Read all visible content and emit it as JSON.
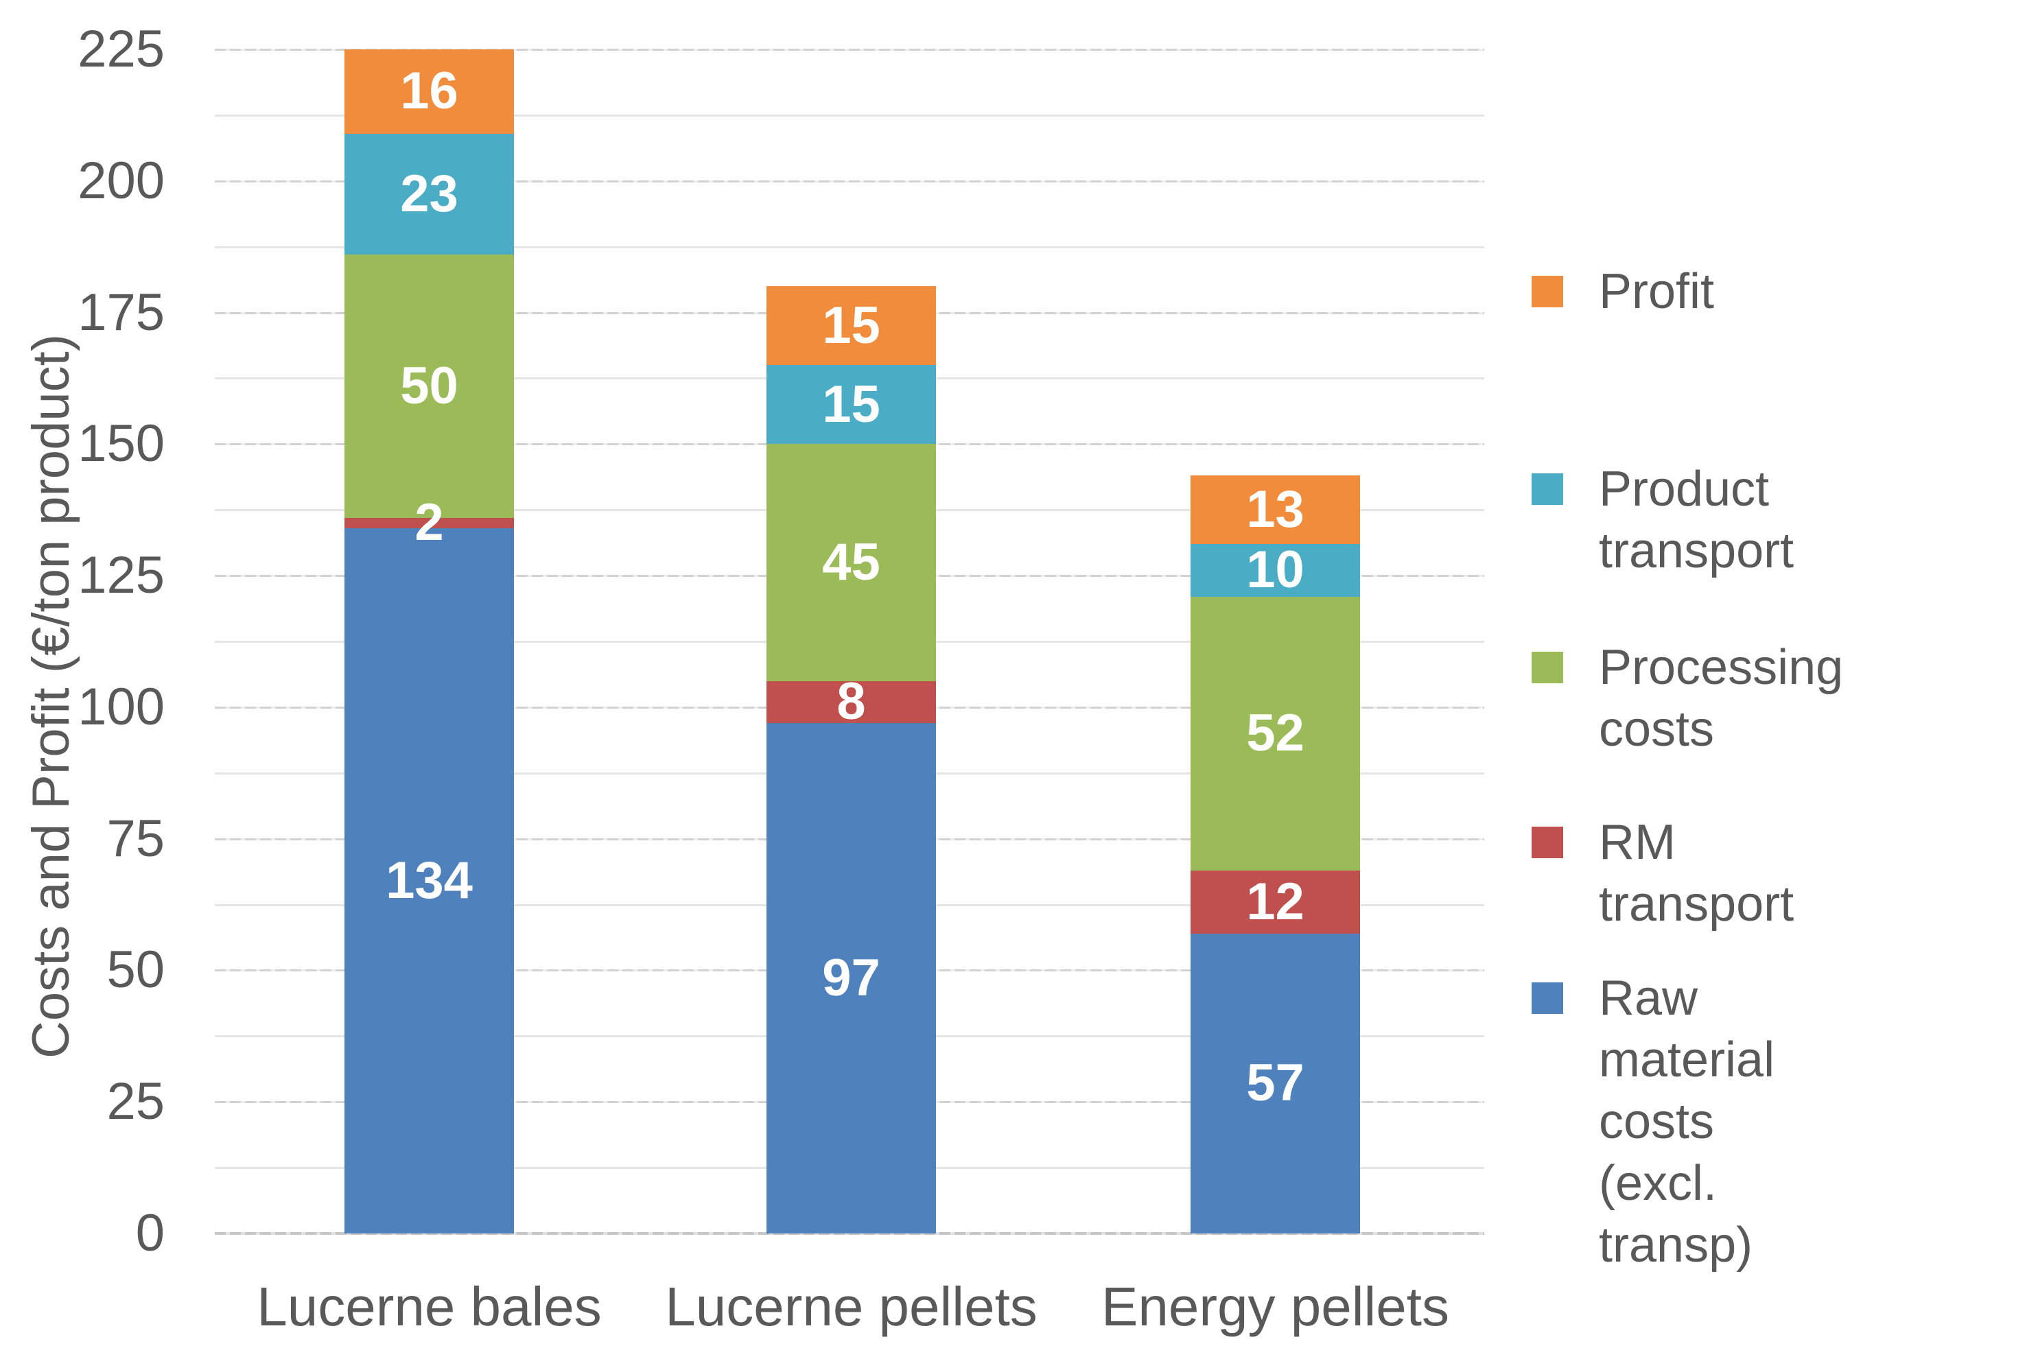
{
  "chart_data": {
    "type": "bar",
    "stacked": true,
    "categories": [
      "Lucerne bales",
      "Lucerne pellets",
      "Energy pellets"
    ],
    "series": [
      {
        "name": "Raw material costs (excl. transp)",
        "color": "#4F81BD",
        "values": [
          134,
          97,
          57
        ]
      },
      {
        "name": "RM transport",
        "color": "#C0504D",
        "values": [
          2,
          8,
          12
        ]
      },
      {
        "name": "Processing costs",
        "color": "#9BBB59",
        "values": [
          50,
          45,
          52
        ]
      },
      {
        "name": "Product transport",
        "color": "#4BACC6",
        "values": [
          23,
          15,
          10
        ]
      },
      {
        "name": "Profit",
        "color": "#F18C3C",
        "values": [
          16,
          15,
          13
        ]
      }
    ],
    "value_labels": [
      [
        134,
        97,
        57
      ],
      [
        2,
        8,
        12
      ],
      [
        50,
        45,
        52
      ],
      [
        23,
        15,
        10
      ],
      [
        16,
        15,
        13
      ]
    ],
    "title": "",
    "xlabel": "",
    "ylabel": "Costs and Profit (€/ton product)",
    "ylim": [
      0,
      225
    ],
    "yticks": [
      0,
      25,
      50,
      75,
      100,
      125,
      150,
      175,
      200,
      225
    ],
    "minor_grid_step": 12.5,
    "grid": true,
    "legend_position": "right",
    "legend": [
      {
        "label": "Profit",
        "color": "#F18C3C"
      },
      {
        "label": "Product transport",
        "color": "#4BACC6"
      },
      {
        "label": "Processing costs",
        "color": "#9BBB59"
      },
      {
        "label": "RM transport",
        "color": "#C0504D"
      },
      {
        "label": "Raw material costs\n(excl. transp)",
        "color": "#4F81BD"
      }
    ],
    "colors": {
      "text": "#595959",
      "value_label_text": "#FFFFFF",
      "gridline_major": "#D2D2D2",
      "gridline_minor": "#E5E5E5",
      "axis_line": "#C7C7C7"
    }
  }
}
